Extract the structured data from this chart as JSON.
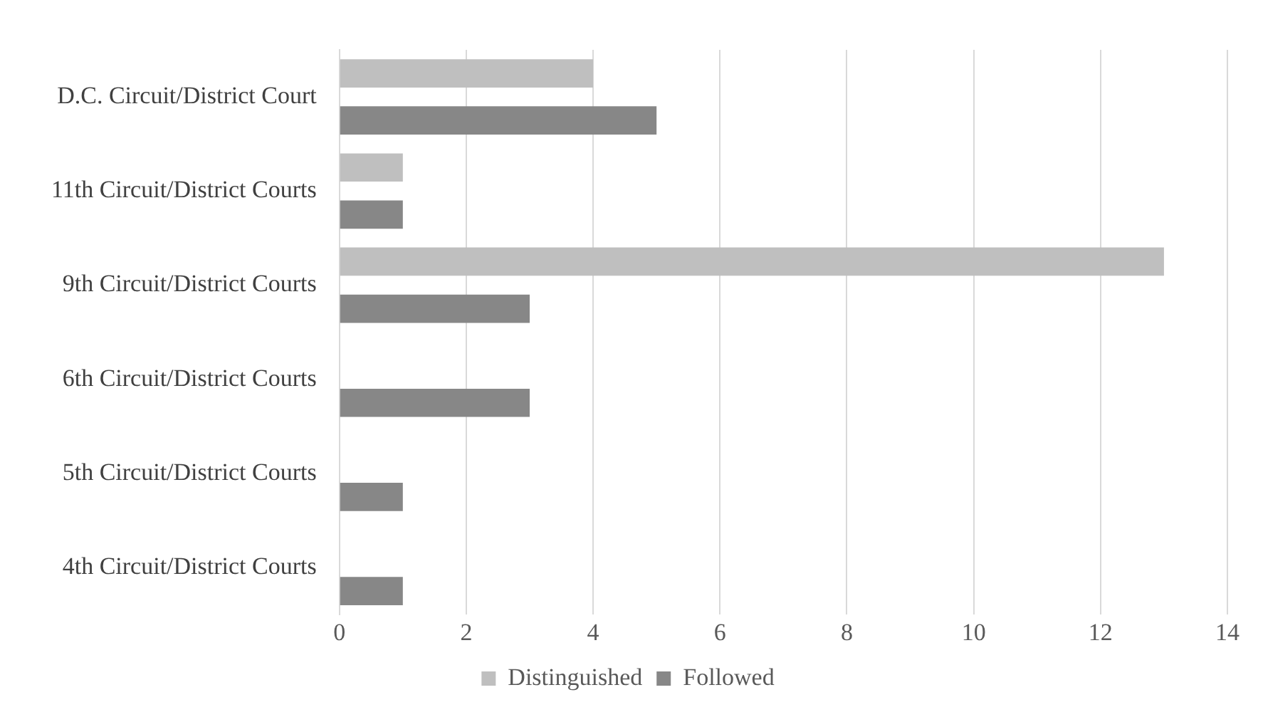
{
  "chart_data": {
    "type": "bar",
    "orientation": "horizontal",
    "categories": [
      "D.C. Circuit/District Court",
      "11th Circuit/District Courts",
      "9th Circuit/District Courts",
      "6th Circuit/District Courts",
      "5th Circuit/District Courts",
      "4th Circuit/District Courts"
    ],
    "series": [
      {
        "name": "Distinguished",
        "color": "#bfbfbf",
        "values": [
          4,
          1,
          13,
          0,
          0,
          0
        ]
      },
      {
        "name": "Followed",
        "color": "#878787",
        "values": [
          5,
          1,
          3,
          3,
          1,
          1
        ]
      }
    ],
    "xlim": [
      0,
      14
    ],
    "xticks": [
      0,
      2,
      4,
      6,
      8,
      10,
      12,
      14
    ],
    "grid": "x",
    "legend": "bottom"
  }
}
